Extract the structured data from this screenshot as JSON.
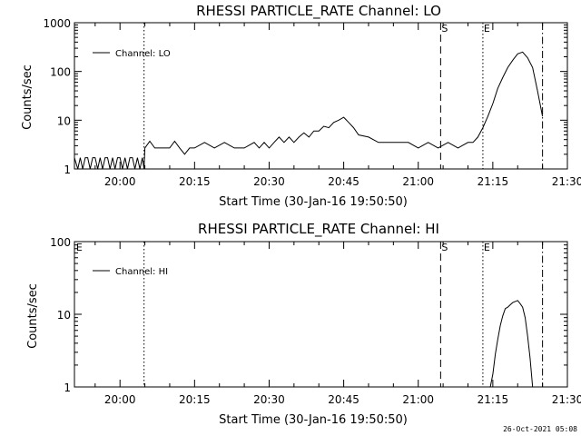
{
  "chart_data": [
    {
      "type": "line",
      "title": "RHESSI PARTICLE_RATE Channel: LO",
      "xlabel": "Start Time (30-Jan-16 19:50:50)",
      "ylabel": "Counts/sec",
      "yscale": "log",
      "ylim": [
        1,
        1000
      ],
      "xlim": [
        "19:50:50",
        "21:30"
      ],
      "x_ticks": [
        "20:00",
        "20:15",
        "20:30",
        "20:45",
        "21:00",
        "21:15",
        "21:30"
      ],
      "y_ticks": [
        "1",
        "10",
        "100",
        "1000"
      ],
      "legend": {
        "placement": "top-left",
        "entries": [
          "Channel: LO"
        ]
      },
      "series": [
        {
          "name": "Channel: LO",
          "x": [
            "19:50:50",
            "19:51:30",
            "19:52:00",
            "19:52:30",
            "19:53:00",
            "19:53:30",
            "19:54:00",
            "19:54:30",
            "19:55:00",
            "19:55:30",
            "19:56:00",
            "19:56:30",
            "19:57:00",
            "19:57:30",
            "19:58:00",
            "19:58:30",
            "19:59:00",
            "19:59:30",
            "20:00:00",
            "20:00:30",
            "20:01:00",
            "20:01:30",
            "20:02:00",
            "20:02:30",
            "20:03:00",
            "20:03:30",
            "20:04:00",
            "20:04:30",
            "20:04:50",
            "20:05:00",
            "20:06:00",
            "20:07:00",
            "20:08:00",
            "20:09:00",
            "20:10:00",
            "20:11:00",
            "20:12:00",
            "20:13:00",
            "20:14:00",
            "20:15:00",
            "20:17:00",
            "20:19:00",
            "20:21:00",
            "20:23:00",
            "20:25:00",
            "20:27:00",
            "20:28:00",
            "20:29:00",
            "20:30:00",
            "20:31:00",
            "20:32:00",
            "20:33:00",
            "20:34:00",
            "20:35:00",
            "20:36:00",
            "20:37:00",
            "20:38:00",
            "20:39:00",
            "20:40:00",
            "20:41:00",
            "20:42:00",
            "20:43:00",
            "20:44:00",
            "20:45:00",
            "20:46:00",
            "20:47:00",
            "20:48:00",
            "20:50:00",
            "20:52:00",
            "20:54:00",
            "20:56:00",
            "20:58:00",
            "21:00:00",
            "21:02:00",
            "21:04:00",
            "21:06:00",
            "21:08:00",
            "21:10:00",
            "21:11:00",
            "21:12:00",
            "21:13:00",
            "21:14:00",
            "21:15:00",
            "21:16:00",
            "21:17:00",
            "21:18:00",
            "21:19:00",
            "21:20:00",
            "21:21:00",
            "21:22:00",
            "21:23:00",
            "21:24:00",
            "21:25:00"
          ],
          "y": [
            1.7,
            1,
            1.7,
            1,
            1.7,
            1.7,
            1,
            1.7,
            1.7,
            1,
            1.7,
            1,
            1.7,
            1.7,
            1,
            1.7,
            1,
            1.7,
            1.7,
            1,
            1.7,
            1,
            1.7,
            1.7,
            1,
            1.7,
            1,
            1.7,
            1,
            2.7,
            3.7,
            2.7,
            2.7,
            2.7,
            2.7,
            3.7,
            2.7,
            2,
            2.7,
            2.7,
            3.5,
            2.7,
            3.5,
            2.7,
            2.7,
            3.5,
            2.7,
            3.5,
            2.7,
            3.5,
            4.5,
            3.5,
            4.5,
            3.5,
            4.5,
            5.5,
            4.5,
            6,
            6,
            7.5,
            7,
            9,
            10,
            11.5,
            9,
            7,
            5,
            4.5,
            3.5,
            3.5,
            3.5,
            3.5,
            2.7,
            3.5,
            2.7,
            3.5,
            2.7,
            3.5,
            3.5,
            4.5,
            7,
            12,
            22,
            45,
            75,
            120,
            170,
            230,
            250,
            190,
            120,
            40,
            12
          ]
        }
      ],
      "annotations": [
        {
          "text": "S",
          "x": "21:04:30",
          "style": "dashed"
        },
        {
          "text": "E",
          "x": "21:13:00",
          "style": "dotted"
        },
        {
          "text": "",
          "x": "20:04:50",
          "style": "dotted"
        },
        {
          "text": "",
          "x": "21:25:00",
          "style": "dash-dot"
        }
      ]
    },
    {
      "type": "line",
      "title": "RHESSI PARTICLE_RATE Channel: HI",
      "xlabel": "Start Time (30-Jan-16 19:50:50)",
      "ylabel": "Counts/sec",
      "yscale": "log",
      "ylim": [
        1,
        100
      ],
      "xlim": [
        "19:50:50",
        "21:30"
      ],
      "x_ticks": [
        "20:00",
        "20:15",
        "20:30",
        "20:45",
        "21:00",
        "21:15",
        "21:30"
      ],
      "y_ticks": [
        "1",
        "10",
        "100"
      ],
      "legend": {
        "placement": "top-left",
        "entries": [
          "Channel: HI"
        ]
      },
      "series": [
        {
          "name": "Channel: HI",
          "x": [
            "21:14:30",
            "21:15:00",
            "21:15:30",
            "21:16:00",
            "21:16:30",
            "21:17:00",
            "21:17:30",
            "21:18:00",
            "21:18:30",
            "21:19:00",
            "21:19:30",
            "21:20:00",
            "21:20:30",
            "21:21:00",
            "21:21:30",
            "21:22:00",
            "21:22:30",
            "21:23:00"
          ],
          "y": [
            1,
            1.5,
            2.8,
            4.5,
            7,
            9.5,
            12,
            12.5,
            13.5,
            14.5,
            15,
            15.5,
            14,
            12.5,
            9,
            5,
            2.5,
            1
          ]
        }
      ],
      "annotations": [
        {
          "text": "E",
          "x": "19:51:00",
          "style": "none"
        },
        {
          "text": "S",
          "x": "21:04:30",
          "style": "dashed"
        },
        {
          "text": "E",
          "x": "21:13:00",
          "style": "dotted"
        },
        {
          "text": "",
          "x": "20:04:50",
          "style": "dotted"
        },
        {
          "text": "",
          "x": "21:25:00",
          "style": "dash-dot"
        }
      ]
    }
  ],
  "footer": {
    "timestamp": "26-Oct-2021 05:08"
  }
}
